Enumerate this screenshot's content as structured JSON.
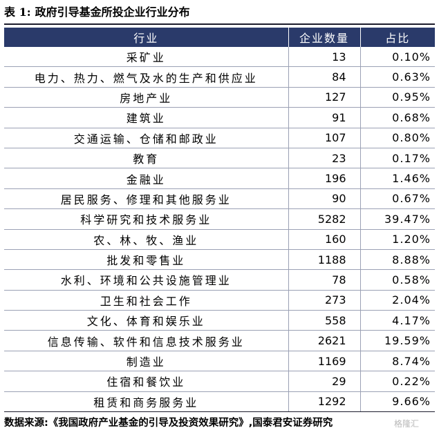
{
  "title": {
    "label": "表 1:",
    "text": "政府引导基金所投企业行业分布"
  },
  "chart_data": {
    "type": "table",
    "columns": [
      "行业",
      "企业数量",
      "占比"
    ],
    "rows": [
      [
        "采矿业",
        "13",
        "0.10%"
      ],
      [
        "电力、热力、燃气及水的生产和供应业",
        "84",
        "0.63%"
      ],
      [
        "房地产业",
        "127",
        "0.95%"
      ],
      [
        "建筑业",
        "91",
        "0.68%"
      ],
      [
        "交通运输、仓储和邮政业",
        "107",
        "0.80%"
      ],
      [
        "教育",
        "23",
        "0.17%"
      ],
      [
        "金融业",
        "196",
        "1.46%"
      ],
      [
        "居民服务、修理和其他服务业",
        "90",
        "0.67%"
      ],
      [
        "科学研究和技术服务业",
        "5282",
        "39.47%"
      ],
      [
        "农、林、牧、渔业",
        "160",
        "1.20%"
      ],
      [
        "批发和零售业",
        "1188",
        "8.88%"
      ],
      [
        "水利、环境和公共设施管理业",
        "78",
        "0.58%"
      ],
      [
        "卫生和社会工作",
        "273",
        "2.04%"
      ],
      [
        "文化、体育和娱乐业",
        "558",
        "4.17%"
      ],
      [
        "信息传输、软件和信息技术服务业",
        "2621",
        "19.59%"
      ],
      [
        "制造业",
        "1169",
        "8.74%"
      ],
      [
        "住宿和餐饮业",
        "29",
        "0.22%"
      ],
      [
        "租赁和商务服务业",
        "1292",
        "9.66%"
      ]
    ]
  },
  "source": "数据来源:《我国政府产业基金的引导及投资效果研究》,国泰君安证券研究",
  "watermark": "格隆汇",
  "colors": {
    "header_bg": "#2a3a6a",
    "header_text": "#ffffff",
    "rule": "#9aa0b4"
  }
}
